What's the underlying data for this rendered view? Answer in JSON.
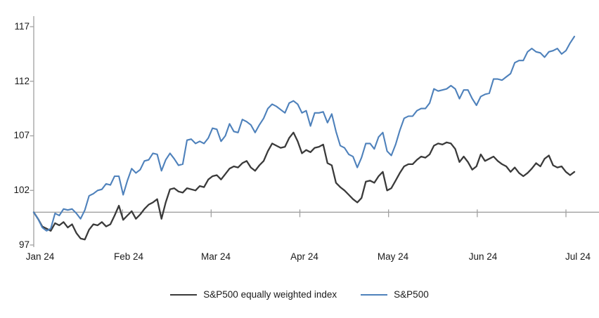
{
  "chart_data": {
    "type": "line",
    "title": "",
    "xlabel": "",
    "ylabel": "",
    "ylim": [
      97,
      117
    ],
    "baseline_value": 100,
    "grid": false,
    "legend_position": "bottom-center",
    "y_tick_labels": [
      "117",
      "112",
      "107",
      "102",
      "97"
    ],
    "x_tick_labels": [
      "Jan 24",
      "Feb 24",
      "Mar 24",
      "Apr 24",
      "May 24",
      "Jun 24",
      "Jul 24"
    ],
    "axis_color": "#a0a0a0",
    "series": [
      {
        "name": "S&P500 equally weighted index",
        "color": "#3a3a3a",
        "values": [
          100.0,
          99.4,
          98.7,
          98.5,
          98.3,
          99.0,
          98.8,
          99.1,
          98.6,
          98.9,
          98.1,
          97.6,
          97.5,
          98.4,
          98.9,
          98.8,
          99.1,
          98.7,
          98.9,
          99.7,
          100.6,
          99.3,
          99.7,
          100.1,
          99.4,
          99.8,
          100.3,
          100.7,
          100.9,
          101.2,
          99.4,
          100.9,
          102.1,
          102.2,
          101.9,
          101.8,
          102.2,
          102.1,
          102.0,
          102.4,
          102.3,
          103.0,
          103.3,
          103.4,
          103.0,
          103.5,
          104.0,
          104.2,
          104.1,
          104.5,
          104.7,
          104.1,
          103.8,
          104.3,
          104.7,
          105.6,
          106.3,
          106.1,
          105.9,
          106.0,
          106.8,
          107.3,
          106.5,
          105.4,
          105.7,
          105.5,
          105.9,
          106.0,
          106.2,
          104.5,
          104.3,
          102.7,
          102.3,
          102.0,
          101.6,
          101.2,
          100.9,
          101.3,
          102.8,
          102.9,
          102.7,
          103.3,
          103.7,
          102.0,
          102.2,
          102.9,
          103.6,
          104.2,
          104.4,
          104.4,
          104.8,
          105.1,
          105.0,
          105.3,
          106.1,
          106.3,
          106.2,
          106.4,
          106.3,
          105.8,
          104.6,
          105.1,
          104.6,
          103.9,
          104.2,
          105.3,
          104.7,
          104.9,
          105.1,
          104.7,
          104.4,
          104.2,
          103.7,
          104.1,
          103.6,
          103.3,
          103.6,
          104.0,
          104.5,
          104.2,
          104.9,
          105.2,
          104.3,
          104.1,
          104.2,
          103.7,
          103.4,
          103.7
        ]
      },
      {
        "name": "S&P500",
        "color": "#4e81bb",
        "values": [
          100.0,
          99.4,
          98.6,
          98.3,
          98.5,
          99.9,
          99.7,
          100.3,
          100.2,
          100.3,
          99.9,
          99.4,
          100.2,
          101.5,
          101.7,
          102.0,
          102.1,
          102.6,
          102.5,
          103.3,
          103.3,
          101.6,
          102.9,
          104.0,
          103.6,
          103.9,
          104.7,
          104.8,
          105.4,
          105.3,
          103.8,
          104.8,
          105.4,
          104.9,
          104.3,
          104.4,
          106.6,
          106.7,
          106.3,
          106.5,
          106.3,
          106.8,
          107.7,
          107.6,
          106.5,
          107.0,
          108.1,
          107.4,
          107.3,
          108.5,
          108.3,
          108.0,
          107.3,
          108.0,
          108.6,
          109.5,
          109.9,
          109.7,
          109.4,
          109.1,
          110.0,
          110.2,
          109.9,
          109.1,
          109.3,
          107.9,
          109.1,
          109.1,
          109.2,
          108.2,
          109.0,
          107.4,
          106.1,
          105.9,
          105.3,
          105.1,
          104.1,
          105.0,
          106.3,
          106.3,
          105.8,
          106.9,
          107.3,
          105.6,
          105.2,
          106.2,
          107.5,
          108.6,
          108.8,
          108.8,
          109.3,
          109.5,
          109.5,
          110.0,
          111.3,
          111.1,
          111.2,
          111.3,
          111.6,
          111.3,
          110.4,
          111.2,
          111.2,
          110.4,
          109.8,
          110.6,
          110.8,
          110.9,
          112.2,
          112.2,
          112.1,
          112.4,
          112.7,
          113.7,
          113.9,
          113.9,
          114.7,
          115.0,
          114.7,
          114.6,
          114.2,
          114.7,
          114.8,
          115.0,
          114.5,
          114.8,
          115.5,
          116.1
        ]
      }
    ]
  },
  "legend": {
    "items": [
      {
        "label": "S&P500 equally weighted index",
        "color": "#3a3a3a"
      },
      {
        "label": "S&P500",
        "color": "#4e81bb"
      }
    ]
  }
}
